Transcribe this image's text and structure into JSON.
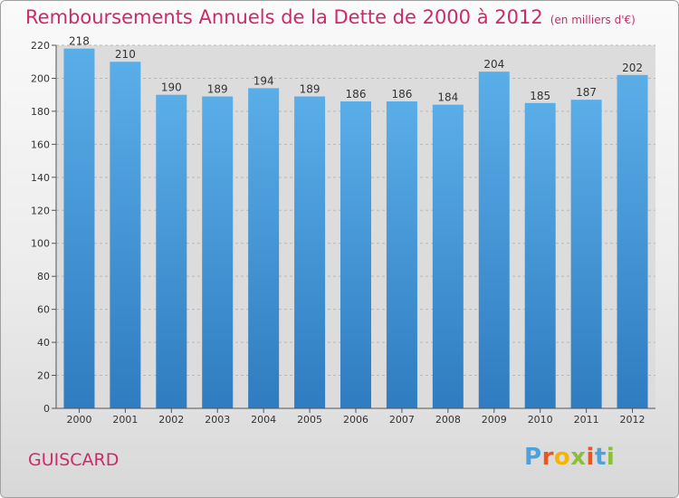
{
  "chart_data": {
    "type": "bar",
    "title": "Remboursements Annuels de la Dette de 2000 à 2012",
    "subtitle": "(en milliers d'€)",
    "categories": [
      "2000",
      "2001",
      "2002",
      "2003",
      "2004",
      "2005",
      "2006",
      "2007",
      "2008",
      "2009",
      "2010",
      "2011",
      "2012"
    ],
    "values": [
      218,
      210,
      190,
      189,
      194,
      189,
      186,
      186,
      184,
      204,
      185,
      187,
      202
    ],
    "ylim": [
      0,
      220
    ],
    "yticks": [
      0,
      20,
      40,
      60,
      80,
      100,
      120,
      140,
      160,
      180,
      200,
      220
    ],
    "grid": true,
    "bar_color": "#3a8ed4"
  },
  "footer": {
    "city": "GUISCARD",
    "logo_text": "Proxiti",
    "logo_colors": [
      "#4da2de",
      "#e9561f",
      "#f4b400",
      "#8bbf3a",
      "#e9561f",
      "#4da2de",
      "#8bbf3a"
    ]
  }
}
